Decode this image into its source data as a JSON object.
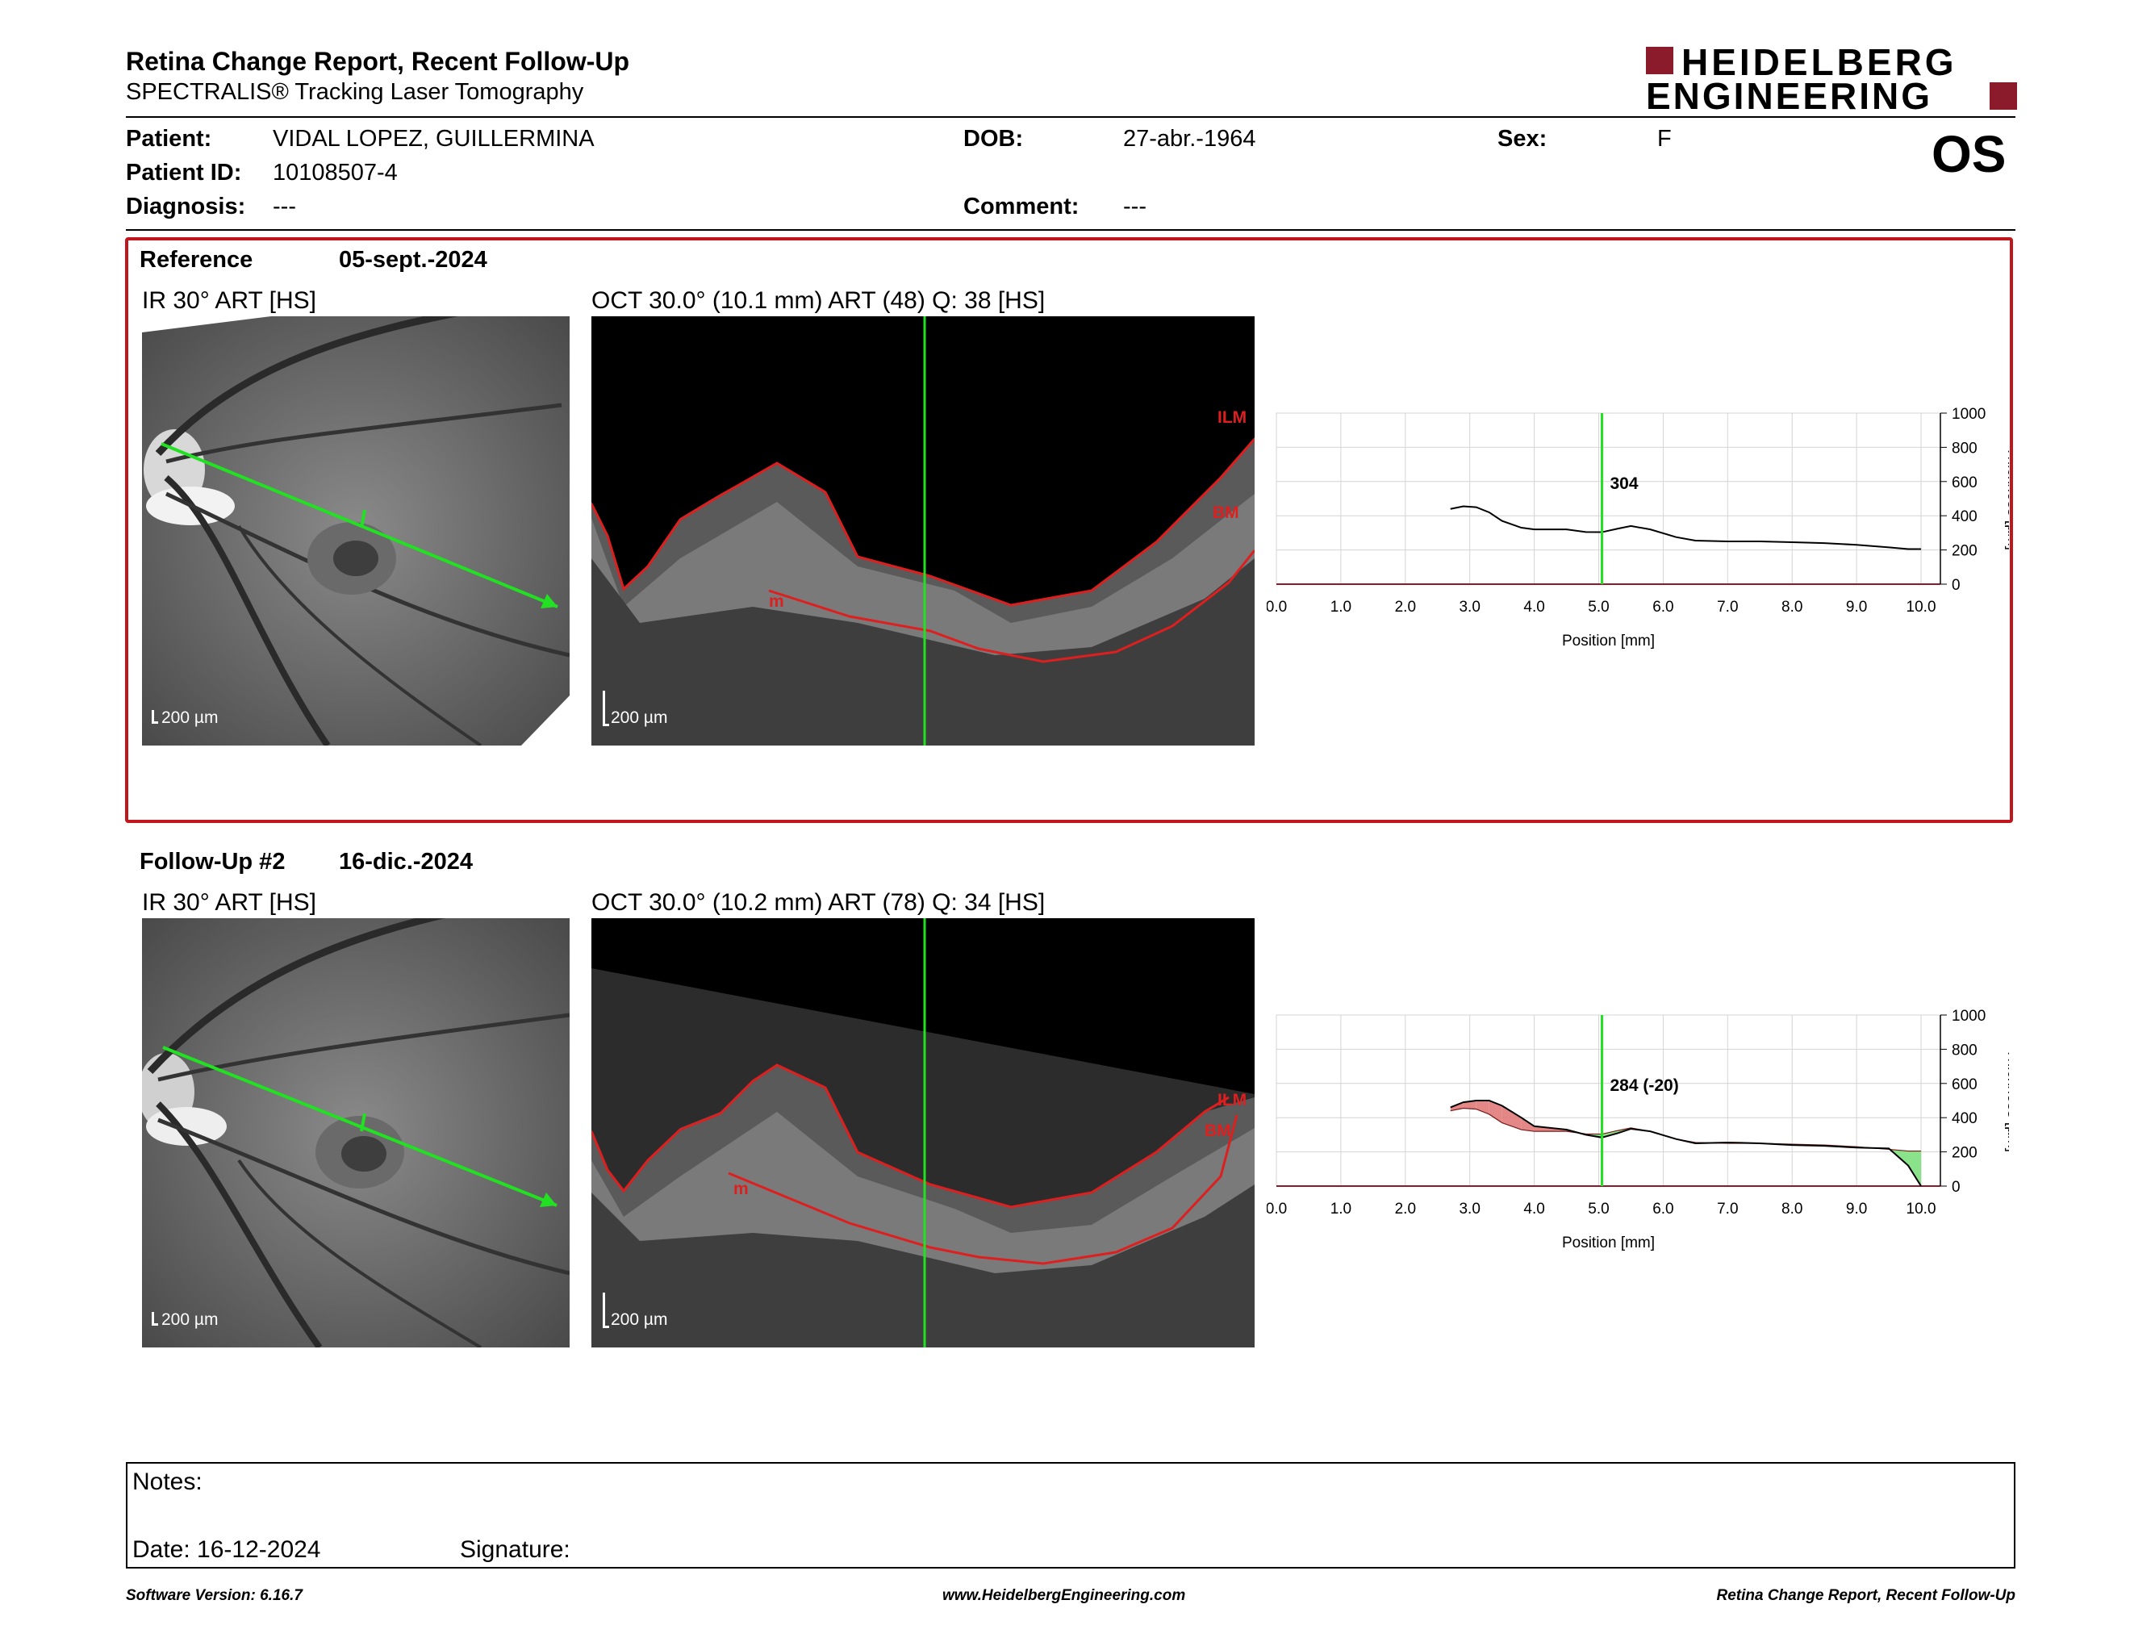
{
  "header": {
    "title": "Retina Change Report, Recent Follow-Up",
    "subtitle": "SPECTRALIS® Tracking Laser Tomography",
    "logo_line1": "HEIDELBERG",
    "logo_line2": "ENGINEERING",
    "eye": "OS"
  },
  "patient": {
    "patient_label": "Patient:",
    "patient_name": "VIDAL LOPEZ, GUILLERMINA",
    "dob_label": "DOB:",
    "dob": "27-abr.-1964",
    "sex_label": "Sex:",
    "sex": "F",
    "id_label": "Patient ID:",
    "id": "10108507-4",
    "diagnosis_label": "Diagnosis:",
    "diagnosis": "---",
    "comment_label": "Comment:",
    "comment": "---"
  },
  "reference": {
    "label": "Reference",
    "date": "05-sept.-2024",
    "ir_label": "IR 30° ART [HS]",
    "oct_label": "OCT 30.0° (10.1 mm) ART (48) Q: 38 [HS]",
    "scale": "200 µm",
    "layer_ilm": "ILM",
    "layer_bm": "BM",
    "layer_m": "m",
    "cursor_value": "304"
  },
  "followup": {
    "label": "Follow-Up #2",
    "date": "16-dic.-2024",
    "ir_label": "IR 30° ART [HS]",
    "oct_label": "OCT 30.0° (10.2 mm) ART (78) Q: 34 [HS]",
    "scale": "200 µm",
    "layer_ilm": "ILM",
    "layer_bm": "BM",
    "layer_m": "m",
    "cursor_value": "284 (-20)"
  },
  "chart_data": [
    {
      "type": "line",
      "xlabel": "Position [mm]",
      "ylabel": "Thickness [µm]",
      "xlim": [
        0,
        10.3
      ],
      "ylim": [
        0,
        1000
      ],
      "xticks": [
        "0.0",
        "1.0",
        "2.0",
        "3.0",
        "4.0",
        "5.0",
        "6.0",
        "7.0",
        "8.0",
        "9.0",
        "10.0"
      ],
      "yticks": [
        "0",
        "200",
        "400",
        "600",
        "800",
        "1000"
      ],
      "cursor_x": 5.05,
      "series": [
        {
          "x": [
            2.7,
            2.9,
            3.1,
            3.3,
            3.5,
            3.8,
            4.0,
            4.5,
            4.8,
            5.05,
            5.3,
            5.5,
            5.8,
            6.2,
            6.5,
            7.0,
            7.5,
            8.0,
            8.5,
            9.0,
            9.5,
            9.8,
            10.0
          ],
          "values": [
            440,
            455,
            450,
            420,
            370,
            330,
            320,
            320,
            305,
            304,
            325,
            340,
            320,
            275,
            255,
            250,
            250,
            245,
            240,
            230,
            215,
            205,
            205
          ]
        }
      ]
    },
    {
      "type": "line",
      "xlabel": "Position [mm]",
      "ylabel": "Thickness [µm]",
      "xlim": [
        0,
        10.3
      ],
      "ylim": [
        0,
        1000
      ],
      "xticks": [
        "0.0",
        "1.0",
        "2.0",
        "3.0",
        "4.0",
        "5.0",
        "6.0",
        "7.0",
        "8.0",
        "9.0",
        "10.0"
      ],
      "yticks": [
        "0",
        "200",
        "400",
        "600",
        "800",
        "1000"
      ],
      "cursor_x": 5.05,
      "series": [
        {
          "x": [
            2.7,
            2.9,
            3.1,
            3.3,
            3.5,
            3.8,
            4.0,
            4.5,
            4.8,
            5.05,
            5.3,
            5.5,
            5.8,
            6.2,
            6.5,
            7.0,
            7.5,
            8.0,
            8.5,
            9.0,
            9.5,
            9.8,
            10.0
          ],
          "values": [
            460,
            490,
            500,
            500,
            470,
            400,
            350,
            330,
            300,
            284,
            310,
            335,
            320,
            275,
            250,
            255,
            250,
            240,
            235,
            225,
            220,
            120,
            0
          ]
        }
      ]
    }
  ],
  "notes": {
    "notes_label": "Notes:",
    "date_label": "Date: 16-12-2024",
    "signature_label": "Signature:"
  },
  "footer": {
    "software": "Software Version: 6.16.7",
    "website": "www.HeidelbergEngineering.com",
    "report": "Retina Change Report, Recent Follow-Up"
  }
}
